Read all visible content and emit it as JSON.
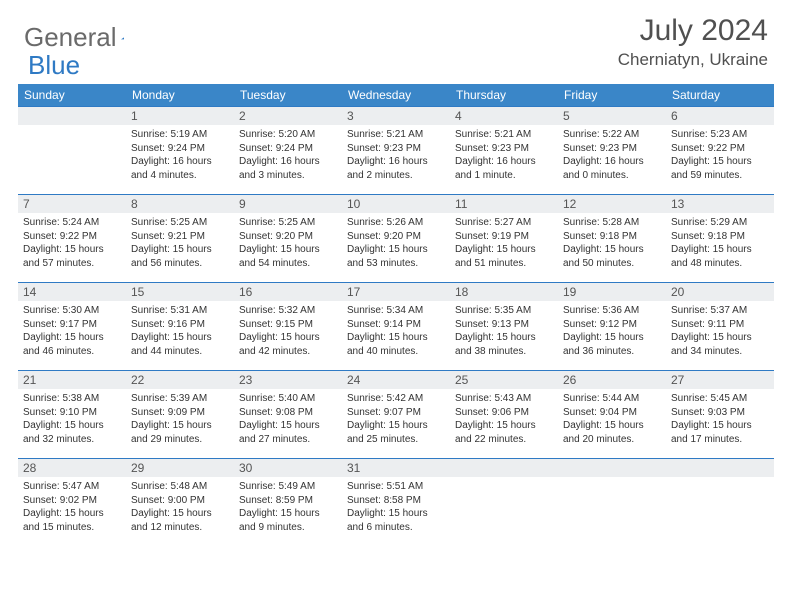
{
  "brand": {
    "word1": "General",
    "word2": "Blue"
  },
  "title": "July 2024",
  "location": "Cherniatyn, Ukraine",
  "colors": {
    "header_bg": "#3a86c8",
    "border": "#2f7ac4",
    "daynum_bg": "#eceef0",
    "text_dark": "#333333",
    "text_gray": "#505050"
  },
  "daysOfWeek": [
    "Sunday",
    "Monday",
    "Tuesday",
    "Wednesday",
    "Thursday",
    "Friday",
    "Saturday"
  ],
  "startOffset": 1,
  "days": [
    {
      "n": 1,
      "sr": "5:19 AM",
      "ss": "9:24 PM",
      "dl": "16 hours and 4 minutes."
    },
    {
      "n": 2,
      "sr": "5:20 AM",
      "ss": "9:24 PM",
      "dl": "16 hours and 3 minutes."
    },
    {
      "n": 3,
      "sr": "5:21 AM",
      "ss": "9:23 PM",
      "dl": "16 hours and 2 minutes."
    },
    {
      "n": 4,
      "sr": "5:21 AM",
      "ss": "9:23 PM",
      "dl": "16 hours and 1 minute."
    },
    {
      "n": 5,
      "sr": "5:22 AM",
      "ss": "9:23 PM",
      "dl": "16 hours and 0 minutes."
    },
    {
      "n": 6,
      "sr": "5:23 AM",
      "ss": "9:22 PM",
      "dl": "15 hours and 59 minutes."
    },
    {
      "n": 7,
      "sr": "5:24 AM",
      "ss": "9:22 PM",
      "dl": "15 hours and 57 minutes."
    },
    {
      "n": 8,
      "sr": "5:25 AM",
      "ss": "9:21 PM",
      "dl": "15 hours and 56 minutes."
    },
    {
      "n": 9,
      "sr": "5:25 AM",
      "ss": "9:20 PM",
      "dl": "15 hours and 54 minutes."
    },
    {
      "n": 10,
      "sr": "5:26 AM",
      "ss": "9:20 PM",
      "dl": "15 hours and 53 minutes."
    },
    {
      "n": 11,
      "sr": "5:27 AM",
      "ss": "9:19 PM",
      "dl": "15 hours and 51 minutes."
    },
    {
      "n": 12,
      "sr": "5:28 AM",
      "ss": "9:18 PM",
      "dl": "15 hours and 50 minutes."
    },
    {
      "n": 13,
      "sr": "5:29 AM",
      "ss": "9:18 PM",
      "dl": "15 hours and 48 minutes."
    },
    {
      "n": 14,
      "sr": "5:30 AM",
      "ss": "9:17 PM",
      "dl": "15 hours and 46 minutes."
    },
    {
      "n": 15,
      "sr": "5:31 AM",
      "ss": "9:16 PM",
      "dl": "15 hours and 44 minutes."
    },
    {
      "n": 16,
      "sr": "5:32 AM",
      "ss": "9:15 PM",
      "dl": "15 hours and 42 minutes."
    },
    {
      "n": 17,
      "sr": "5:34 AM",
      "ss": "9:14 PM",
      "dl": "15 hours and 40 minutes."
    },
    {
      "n": 18,
      "sr": "5:35 AM",
      "ss": "9:13 PM",
      "dl": "15 hours and 38 minutes."
    },
    {
      "n": 19,
      "sr": "5:36 AM",
      "ss": "9:12 PM",
      "dl": "15 hours and 36 minutes."
    },
    {
      "n": 20,
      "sr": "5:37 AM",
      "ss": "9:11 PM",
      "dl": "15 hours and 34 minutes."
    },
    {
      "n": 21,
      "sr": "5:38 AM",
      "ss": "9:10 PM",
      "dl": "15 hours and 32 minutes."
    },
    {
      "n": 22,
      "sr": "5:39 AM",
      "ss": "9:09 PM",
      "dl": "15 hours and 29 minutes."
    },
    {
      "n": 23,
      "sr": "5:40 AM",
      "ss": "9:08 PM",
      "dl": "15 hours and 27 minutes."
    },
    {
      "n": 24,
      "sr": "5:42 AM",
      "ss": "9:07 PM",
      "dl": "15 hours and 25 minutes."
    },
    {
      "n": 25,
      "sr": "5:43 AM",
      "ss": "9:06 PM",
      "dl": "15 hours and 22 minutes."
    },
    {
      "n": 26,
      "sr": "5:44 AM",
      "ss": "9:04 PM",
      "dl": "15 hours and 20 minutes."
    },
    {
      "n": 27,
      "sr": "5:45 AM",
      "ss": "9:03 PM",
      "dl": "15 hours and 17 minutes."
    },
    {
      "n": 28,
      "sr": "5:47 AM",
      "ss": "9:02 PM",
      "dl": "15 hours and 15 minutes."
    },
    {
      "n": 29,
      "sr": "5:48 AM",
      "ss": "9:00 PM",
      "dl": "15 hours and 12 minutes."
    },
    {
      "n": 30,
      "sr": "5:49 AM",
      "ss": "8:59 PM",
      "dl": "15 hours and 9 minutes."
    },
    {
      "n": 31,
      "sr": "5:51 AM",
      "ss": "8:58 PM",
      "dl": "15 hours and 6 minutes."
    }
  ],
  "labels": {
    "sunrise": "Sunrise:",
    "sunset": "Sunset:",
    "daylight": "Daylight:"
  }
}
